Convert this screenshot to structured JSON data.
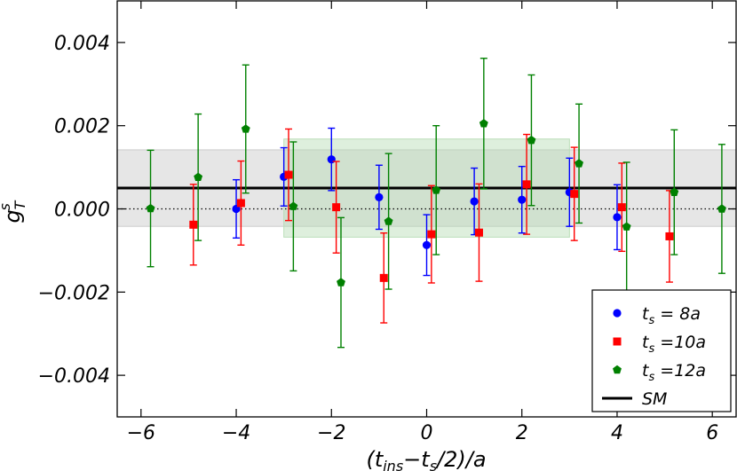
{
  "chart_data": {
    "type": "scatter",
    "xlabel_main": "(t",
    "xlabel_sub1": "ins",
    "xlabel_mid": "−t",
    "xlabel_sub2": "s",
    "xlabel_end": "/2)/a",
    "ylabel_main": "g",
    "ylabel_sup": "s",
    "ylabel_sub": "T",
    "xlim": [
      -6.5,
      6.5
    ],
    "ylim": [
      -0.005,
      0.005
    ],
    "xticks": [
      -6,
      -4,
      -2,
      0,
      2,
      4,
      6
    ],
    "xtick_labels": [
      "−6",
      "−4",
      "−2",
      "0",
      "2",
      "4",
      "6"
    ],
    "yticks": [
      -0.004,
      -0.002,
      0.0,
      0.002,
      0.004
    ],
    "ytick_labels": [
      "−0.004",
      "−0.002",
      "0.000",
      "0.002",
      "0.004"
    ],
    "sm_value": 0.0005,
    "bands": [
      {
        "x": [
          -6.5,
          6.5
        ],
        "y": [
          -0.00042,
          0.00142
        ],
        "color": "#c8c8c8"
      },
      {
        "x": [
          -3.0,
          3.0
        ],
        "y": [
          -0.00068,
          0.00168
        ],
        "color": "#b6dcb4"
      }
    ],
    "series": [
      {
        "name": "t_s = 8a",
        "marker": "circle",
        "color": "#0000ff",
        "points": [
          {
            "x": -4,
            "y": 0.0,
            "err": 0.0007
          },
          {
            "x": -3,
            "y": 0.00077,
            "err": 0.0007
          },
          {
            "x": -2,
            "y": 0.00119,
            "err": 0.00075
          },
          {
            "x": -1,
            "y": 0.00028,
            "err": 0.00077
          },
          {
            "x": 0,
            "y": -0.00087,
            "err": 0.00073
          },
          {
            "x": 1,
            "y": 0.00018,
            "err": 0.0008
          },
          {
            "x": 2,
            "y": 0.00022,
            "err": 0.0008
          },
          {
            "x": 3,
            "y": 0.0004,
            "err": 0.00082
          },
          {
            "x": 4,
            "y": -0.0002,
            "err": 0.00078
          }
        ]
      },
      {
        "name": "t_s = 10a",
        "marker": "square",
        "color": "#ff0000",
        "points": [
          {
            "x": -4.9,
            "y": -0.00038,
            "err": 0.00097
          },
          {
            "x": -3.9,
            "y": 0.00014,
            "err": 0.00101
          },
          {
            "x": -2.9,
            "y": 0.00082,
            "err": 0.0011
          },
          {
            "x": -1.9,
            "y": 4e-05,
            "err": 0.0011
          },
          {
            "x": -0.9,
            "y": -0.00166,
            "err": 0.00108
          },
          {
            "x": 0.1,
            "y": -0.00061,
            "err": 0.00117
          },
          {
            "x": 1.1,
            "y": -0.00057,
            "err": 0.00117
          },
          {
            "x": 2.1,
            "y": 0.00059,
            "err": 0.0012
          },
          {
            "x": 3.1,
            "y": 0.00036,
            "err": 0.00112
          },
          {
            "x": 4.1,
            "y": 4e-05,
            "err": 0.00106
          },
          {
            "x": 5.1,
            "y": -0.00066,
            "err": 0.0011
          }
        ]
      },
      {
        "name": "t_s = 12a",
        "marker": "pentagon",
        "color": "#008000",
        "points": [
          {
            "x": -5.8,
            "y": 1e-05,
            "err": 0.0014
          },
          {
            "x": -4.8,
            "y": 0.00076,
            "err": 0.00152
          },
          {
            "x": -3.8,
            "y": 0.00192,
            "err": 0.00154
          },
          {
            "x": -2.8,
            "y": 6e-05,
            "err": 0.00155
          },
          {
            "x": -1.8,
            "y": -0.00177,
            "err": 0.00156
          },
          {
            "x": -0.8,
            "y": -0.0003,
            "err": 0.00163
          },
          {
            "x": 0.2,
            "y": 0.00045,
            "err": 0.00155
          },
          {
            "x": 1.2,
            "y": 0.00205,
            "err": 0.00157
          },
          {
            "x": 2.2,
            "y": 0.00165,
            "err": 0.00157
          },
          {
            "x": 3.2,
            "y": 0.00109,
            "err": 0.00143
          },
          {
            "x": 4.2,
            "y": -0.00043,
            "err": 0.00155
          },
          {
            "x": 5.2,
            "y": 0.0004,
            "err": 0.0015
          },
          {
            "x": 6.2,
            "y": 0.0,
            "err": 0.00155
          }
        ]
      }
    ],
    "legend": {
      "position": "lower-right",
      "entries": [
        {
          "prefix": "t",
          "sub": "s",
          "suffix": " = 8a",
          "marker": "circle",
          "color": "#0000ff"
        },
        {
          "prefix": "t",
          "sub": "s",
          "suffix": " =10a",
          "marker": "square",
          "color": "#ff0000"
        },
        {
          "prefix": "t",
          "sub": "s",
          "suffix": " =12a",
          "marker": "pentagon",
          "color": "#008000"
        },
        {
          "prefix": "SM",
          "sub": "",
          "suffix": "",
          "marker": "line",
          "color": "#000000"
        }
      ]
    }
  }
}
